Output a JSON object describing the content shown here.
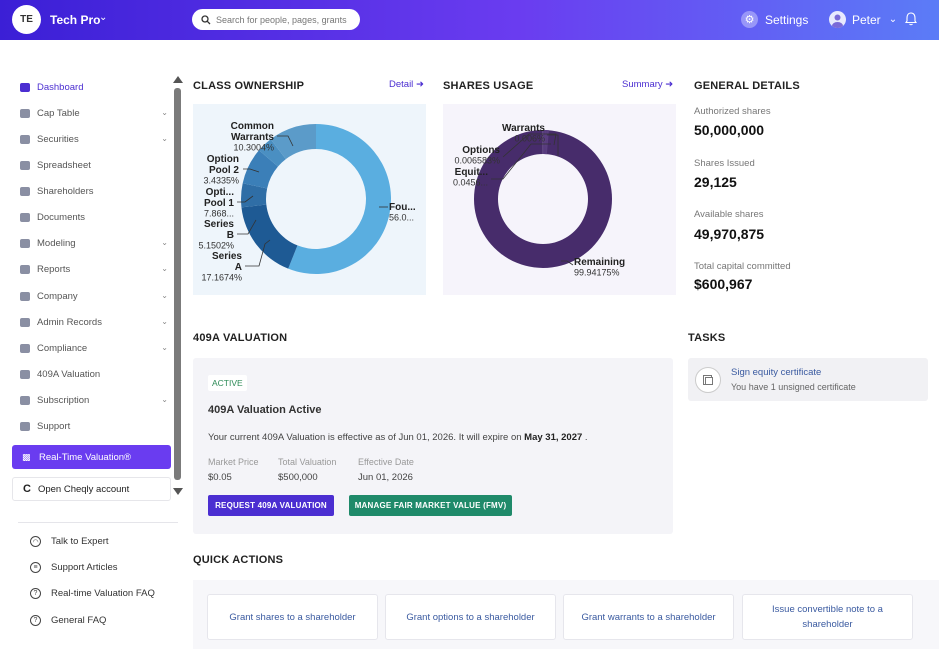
{
  "header": {
    "avatar_initials": "TE",
    "company_name": "Tech Pro",
    "search_placeholder": "Search for people, pages, grants",
    "settings_label": "Settings",
    "user_name": "Peter"
  },
  "sidebar": {
    "items": [
      {
        "label": "Dashboard",
        "active": true,
        "expandable": false
      },
      {
        "label": "Cap Table",
        "active": false,
        "expandable": true
      },
      {
        "label": "Securities",
        "active": false,
        "expandable": true
      },
      {
        "label": "Spreadsheet",
        "active": false,
        "expandable": false
      },
      {
        "label": "Shareholders",
        "active": false,
        "expandable": false
      },
      {
        "label": "Documents",
        "active": false,
        "expandable": false
      },
      {
        "label": "Modeling",
        "active": false,
        "expandable": true
      },
      {
        "label": "Reports",
        "active": false,
        "expandable": true
      },
      {
        "label": "Company",
        "active": false,
        "expandable": true
      },
      {
        "label": "Admin Records",
        "active": false,
        "expandable": true
      },
      {
        "label": "Compliance",
        "active": false,
        "expandable": true
      },
      {
        "label": "409A Valuation",
        "active": false,
        "expandable": false
      },
      {
        "label": "Subscription",
        "active": false,
        "expandable": true
      },
      {
        "label": "Support",
        "active": false,
        "expandable": false
      }
    ],
    "realtime_valuation": "Real-Time Valuation®",
    "open_cheqly": "Open Cheqly account",
    "help": [
      {
        "label": "Talk to Expert",
        "icon": "headset-icon"
      },
      {
        "label": "Support Articles",
        "icon": "book-icon"
      },
      {
        "label": "Real-time Valuation FAQ",
        "icon": "question-icon"
      },
      {
        "label": "General FAQ",
        "icon": "question-icon"
      }
    ]
  },
  "class_ownership": {
    "title": "CLASS OWNERSHIP",
    "link": "Detail",
    "chart_data": {
      "type": "pie",
      "donut": true,
      "slices": [
        {
          "label": "Fou...",
          "value_label": "56.0...",
          "value": 56.0,
          "color": "#5aaee0"
        },
        {
          "label": "Series A",
          "value_label": "17.1674%",
          "value": 17.1674,
          "color": "#1e5a94"
        },
        {
          "label": "Series B",
          "value_label": "5.1502%",
          "value": 5.1502,
          "color": "#2f6ea6"
        },
        {
          "label": "Opti... Pool 1",
          "value_label": "7.868...",
          "value": 7.868,
          "color": "#3b7fb8"
        },
        {
          "label": "Option Pool 2",
          "value_label": "3.4335%",
          "value": 3.4335,
          "color": "#4a8fc2"
        },
        {
          "label": "Common Warrants",
          "value_label": "10.3004%",
          "value": 10.3004,
          "color": "#5b9bc9"
        }
      ]
    }
  },
  "shares_usage": {
    "title": "SHARES USAGE",
    "link": "Summary",
    "chart_data": {
      "type": "pie",
      "donut": true,
      "slices": [
        {
          "label": "Remaining",
          "value_label": "99.94175%",
          "value": 99.94175,
          "color": "#472c6b"
        },
        {
          "label": "Warrants",
          "value_label": "0.006%",
          "value": 0.006,
          "color": "#5a3e80"
        },
        {
          "label": "Options",
          "value_label": "0.006583%",
          "value": 0.006583,
          "color": "#5a3e80"
        },
        {
          "label": "Equit...",
          "value_label": "0.0456...",
          "value": 0.0456,
          "color": "#5a3e80"
        }
      ]
    }
  },
  "general_details": {
    "title": "GENERAL DETAILS",
    "items": [
      {
        "label": "Authorized shares",
        "value": "50,000,000"
      },
      {
        "label": "Shares Issued",
        "value": "29,125"
      },
      {
        "label": "Available shares",
        "value": "49,970,875"
      },
      {
        "label": "Total capital committed",
        "value": "$600,967"
      }
    ]
  },
  "valuation": {
    "title": "409A VALUATION",
    "badge": "ACTIVE",
    "heading": "409A Valuation Active",
    "text_prefix": "Your current 409A Valuation is effective as of Jun 01, 2026. It will expire on",
    "text_date": "May 31, 2027",
    "text_suffix": ".",
    "market_price_label": "Market Price",
    "market_price": "$0.05",
    "total_valuation_label": "Total Valuation",
    "total_valuation": "$500,000",
    "effective_date_label": "Effective Date",
    "effective_date": "Jun 01, 2026",
    "request_button": "REQUEST 409A VALUATION",
    "manage_button": "MANAGE FAIR MARKET VALUE (FMV)"
  },
  "tasks": {
    "title": "TASKS",
    "items": [
      {
        "title": "Sign equity certificate",
        "subtitle": "You have 1 unsigned certificate"
      }
    ]
  },
  "quick_actions": {
    "title": "QUICK ACTIONS",
    "items": [
      "Grant shares to a shareholder",
      "Grant options to a shareholder",
      "Grant warrants to a shareholder",
      "Issue convertible note to a shareholder"
    ]
  },
  "colors": {
    "accent": "#4b2ed1",
    "active_badge": "#2d8b57",
    "fmv_button": "#1f8a6a"
  }
}
